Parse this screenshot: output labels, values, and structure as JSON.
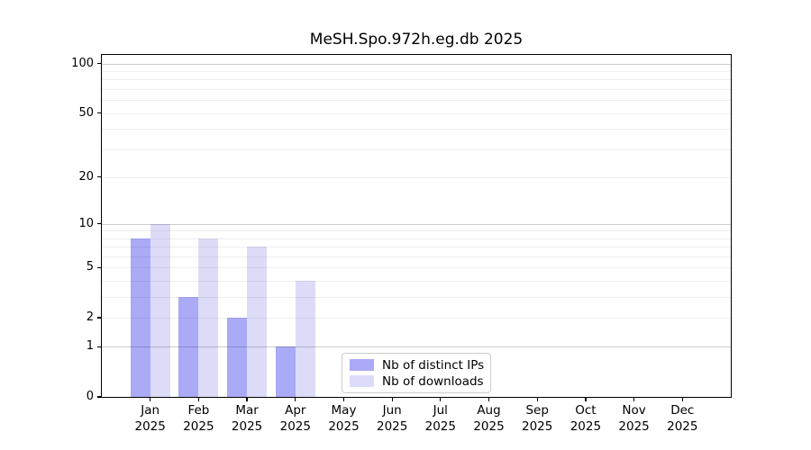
{
  "chart_data": {
    "type": "bar",
    "title": "MeSH.Spo.972h.eg.db 2025",
    "yscale": "log1p",
    "grid": true,
    "categories": [
      "Jan",
      "Feb",
      "Mar",
      "Apr",
      "May",
      "Jun",
      "Jul",
      "Aug",
      "Sep",
      "Oct",
      "Nov",
      "Dec"
    ],
    "year_label": "2025",
    "series": [
      {
        "key": "distinct-ips",
        "name": "Nb of distinct IPs",
        "color": "#aaaaf7",
        "values": [
          8,
          3,
          2,
          1,
          0,
          0,
          0,
          0,
          0,
          0,
          0,
          0
        ]
      },
      {
        "key": "downloads",
        "name": "Nb of downloads",
        "color": "#dcdcf9",
        "values": [
          10,
          8,
          7,
          4,
          0,
          0,
          0,
          0,
          0,
          0,
          0,
          0
        ]
      }
    ],
    "ylim": [
      0,
      113
    ],
    "y_tick_labels": [
      "100",
      "50",
      "20",
      "10",
      "5",
      "2",
      "1",
      "0"
    ],
    "y_tick_values": [
      100,
      50,
      20,
      10,
      5,
      2,
      1,
      0
    ],
    "y_major_grid": [
      1,
      10,
      100
    ],
    "y_minor_grid": [
      2,
      3,
      4,
      5,
      6,
      7,
      8,
      9,
      20,
      30,
      40,
      50,
      60,
      70,
      80,
      90
    ],
    "legend_position": "inside-bottom-center",
    "colors": {
      "axis": "#000000",
      "background": "#ffffff",
      "grid_minor": "#eeeeee",
      "grid_major": "#cccccc",
      "legend_border": "#cccccc"
    }
  }
}
